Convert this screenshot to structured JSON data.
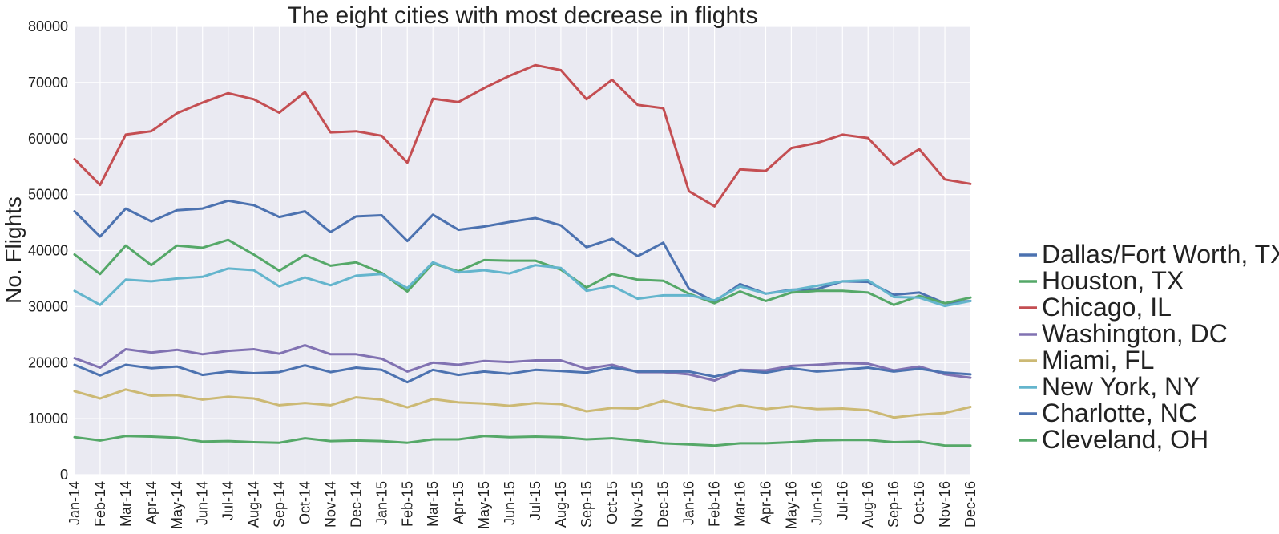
{
  "chart_data": {
    "type": "line",
    "title": "The eight cities with most decrease in flights",
    "xlabel": "",
    "ylabel": "No. Flights",
    "ylim": [
      0,
      80000
    ],
    "yticks": [
      0,
      10000,
      20000,
      30000,
      40000,
      50000,
      60000,
      70000,
      80000
    ],
    "grid": true,
    "legend_position": "right",
    "categories": [
      "Jan-14",
      "Feb-14",
      "Mar-14",
      "Apr-14",
      "May-14",
      "Jun-14",
      "Jul-14",
      "Aug-14",
      "Sep-14",
      "Oct-14",
      "Nov-14",
      "Dec-14",
      "Jan-15",
      "Feb-15",
      "Mar-15",
      "Apr-15",
      "May-15",
      "Jun-15",
      "Jul-15",
      "Aug-15",
      "Sep-15",
      "Oct-15",
      "Nov-15",
      "Dec-15",
      "Jan-16",
      "Feb-16",
      "Mar-16",
      "Apr-16",
      "May-16",
      "Jun-16",
      "Jul-16",
      "Aug-16",
      "Sep-16",
      "Oct-16",
      "Nov-16",
      "Dec-16"
    ],
    "series": [
      {
        "name": "Dallas/Fort Worth, TX",
        "color": "#4c72b0",
        "values": [
          47000,
          42500,
          47500,
          45200,
          47200,
          47500,
          48900,
          48100,
          46000,
          47000,
          43300,
          46100,
          46300,
          41700,
          46400,
          43700,
          44300,
          45100,
          45800,
          44500,
          40600,
          42100,
          39000,
          41400,
          33200,
          30900,
          34000,
          32300,
          33000,
          33100,
          34500,
          34400,
          32100,
          32500,
          30600,
          31000
        ]
      },
      {
        "name": "Houston, TX",
        "color": "#55a868",
        "values": [
          39300,
          35800,
          40900,
          37400,
          40900,
          40500,
          41900,
          39300,
          36400,
          39200,
          37300,
          37900,
          36000,
          32700,
          37700,
          36300,
          38300,
          38200,
          38200,
          36600,
          33400,
          35800,
          34800,
          34600,
          32300,
          30600,
          32700,
          31000,
          32500,
          32800,
          32800,
          32500,
          30300,
          31900,
          30600,
          31600
        ]
      },
      {
        "name": "Chicago, IL",
        "color": "#c44e52",
        "values": [
          56300,
          51700,
          60700,
          61300,
          64500,
          66400,
          68100,
          67000,
          64600,
          68300,
          61100,
          61300,
          60500,
          55700,
          67100,
          66500,
          69000,
          71200,
          73100,
          72200,
          67000,
          70500,
          66000,
          65400,
          50600,
          47900,
          54500,
          54200,
          58300,
          59200,
          60700,
          60100,
          55300,
          58100,
          52700,
          51900
        ]
      },
      {
        "name": "Washington, DC",
        "color": "#8172b2",
        "values": [
          20800,
          19100,
          22400,
          21800,
          22300,
          21500,
          22100,
          22400,
          21600,
          23100,
          21500,
          21500,
          20700,
          18400,
          20000,
          19600,
          20300,
          20100,
          20400,
          20400,
          18900,
          19600,
          18300,
          18300,
          17900,
          16800,
          18700,
          18600,
          19400,
          19600,
          19900,
          19800,
          18600,
          19300,
          17900,
          17300
        ]
      },
      {
        "name": "Miami, FL",
        "color": "#ccb974",
        "values": [
          14900,
          13600,
          15200,
          14100,
          14200,
          13400,
          13900,
          13600,
          12400,
          12800,
          12400,
          13800,
          13400,
          12000,
          13500,
          12900,
          12700,
          12300,
          12800,
          12600,
          11300,
          11900,
          11800,
          13200,
          12100,
          11400,
          12400,
          11700,
          12200,
          11700,
          11800,
          11500,
          10200,
          10700,
          11000,
          12100
        ]
      },
      {
        "name": "New York, NY",
        "color": "#64b5cd",
        "values": [
          32800,
          30300,
          34800,
          34500,
          35000,
          35300,
          36800,
          36500,
          33600,
          35200,
          33800,
          35500,
          35800,
          33300,
          37900,
          36100,
          36500,
          35900,
          37400,
          36900,
          32800,
          33700,
          31400,
          32000,
          32000,
          31100,
          33600,
          32300,
          32900,
          33700,
          34500,
          34700,
          31700,
          31600,
          30100,
          31000
        ]
      },
      {
        "name": "Charlotte, NC",
        "color": "#4c72b0",
        "values": [
          19600,
          17700,
          19600,
          19000,
          19300,
          17800,
          18400,
          18100,
          18300,
          19500,
          18300,
          19100,
          18700,
          16500,
          18700,
          17800,
          18400,
          18000,
          18700,
          18500,
          18200,
          19100,
          18400,
          18400,
          18400,
          17500,
          18600,
          18200,
          19000,
          18400,
          18700,
          19100,
          18400,
          18900,
          18200,
          17900
        ]
      },
      {
        "name": "Cleveland, OH",
        "color": "#55a868",
        "values": [
          6700,
          6100,
          6900,
          6800,
          6600,
          5900,
          6000,
          5800,
          5700,
          6500,
          6000,
          6100,
          6000,
          5700,
          6300,
          6300,
          6900,
          6700,
          6800,
          6700,
          6300,
          6500,
          6100,
          5600,
          5400,
          5200,
          5600,
          5600,
          5800,
          6100,
          6200,
          6200,
          5800,
          5900,
          5200,
          5200
        ]
      }
    ]
  }
}
